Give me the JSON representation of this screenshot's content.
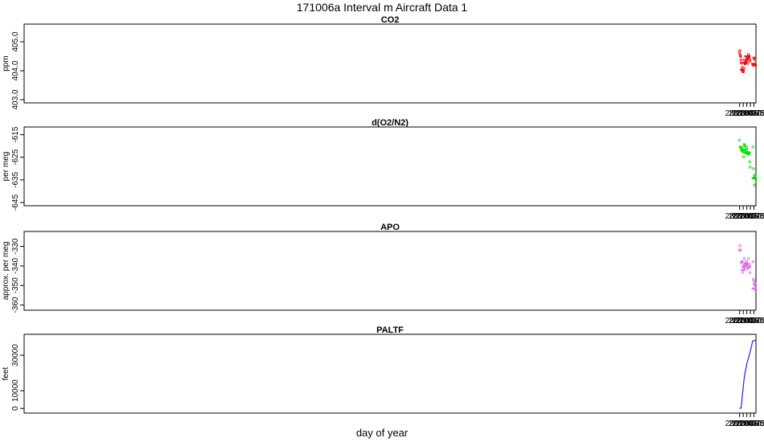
{
  "page_title": "171006a   Interval m Aircraft Data 1",
  "xlabel": "day of year",
  "x_ticks": [
    "280.060",
    "280.065",
    "280.070",
    "280.075",
    "280.080"
  ],
  "x_tick_values": [
    280.06,
    280.065,
    280.07,
    280.075,
    280.08
  ],
  "xlim": [
    279.0594,
    280.0828
  ],
  "chart_data": [
    {
      "type": "scatter",
      "title": "CO2",
      "ylabel": "ppm",
      "color": "#e8000b",
      "ylim": [
        403.0,
        405.5
      ],
      "y_ticks": [
        "403.0",
        "404.0",
        "405.0"
      ],
      "y_tick_values": [
        403.0,
        404.0,
        405.0
      ],
      "segments": [
        {
          "x": [
            280.0596,
            280.0605,
            280.0615,
            280.0625,
            280.0635,
            280.0645,
            280.0655,
            280.0665,
            280.0675,
            280.0685,
            280.0695,
            280.0705,
            280.0715,
            280.0725,
            280.0735,
            280.0746
          ],
          "y": [
            404.6,
            404.5,
            404.4,
            404.3,
            404.1,
            403.9,
            404.1,
            404.3,
            404.2,
            404.3,
            404.4,
            404.5,
            404.4,
            404.5,
            404.5,
            404.3
          ]
        },
        {
          "x": [
            280.0786,
            280.0795,
            280.0805,
            280.0815,
            280.0822
          ],
          "y": [
            404.1,
            404.3,
            404.4,
            404.3,
            404.2
          ]
        }
      ]
    },
    {
      "type": "scatter",
      "title": "d(O2/N2)",
      "ylabel": "per meg",
      "color": "#00dd00",
      "ylim": [
        -645,
        -613
      ],
      "y_ticks": [
        "-645",
        "-635",
        "-625",
        "-615"
      ],
      "y_tick_values": [
        -645,
        -635,
        -625,
        -615
      ],
      "segments": [
        {
          "x": [
            280.0596,
            280.06,
            280.0605,
            280.061,
            280.0614
          ],
          "y": [
            -620,
            -622,
            -621,
            -620,
            -619
          ]
        },
        {
          "x": [
            280.0625,
            280.0635,
            280.0645,
            280.0655,
            280.0665,
            280.0675,
            280.0685,
            280.0695,
            280.0705,
            280.0715,
            280.0725,
            280.0735,
            280.0746
          ],
          "y": [
            -623,
            -621,
            -622,
            -624,
            -620,
            -620,
            -621,
            -621,
            -622,
            -624,
            -623,
            -624,
            -628
          ]
        },
        {
          "x": [
            280.0786,
            280.0791,
            280.0797,
            280.0803,
            280.081,
            280.0816,
            280.0822
          ],
          "y": [
            -620,
            -632,
            -634,
            -636,
            -634,
            -632,
            -636
          ]
        }
      ]
    },
    {
      "type": "scatter",
      "title": "APO",
      "ylabel": "approx. per meg",
      "color": "#e066ee",
      "ylim": [
        -361,
        -324
      ],
      "y_ticks": [
        "-360",
        "-350",
        "-340",
        "-330"
      ],
      "y_tick_values": [
        -360,
        -350,
        -340,
        -330
      ],
      "segments": [
        {
          "x": [
            280.0596,
            280.06,
            280.0605,
            280.061,
            280.0614
          ],
          "y": [
            -333,
            -334,
            -331,
            -333,
            -332
          ]
        },
        {
          "x": [
            280.0625,
            280.0635,
            280.0645,
            280.0655,
            280.0665,
            280.0675,
            280.0685,
            280.0695,
            280.0705,
            280.0715,
            280.0725,
            280.0735,
            280.0746
          ],
          "y": [
            -338,
            -340,
            -341,
            -342,
            -338,
            -338,
            -339,
            -338,
            -339,
            -341,
            -339,
            -340,
            -344
          ]
        },
        {
          "x": [
            280.0786,
            280.0791,
            280.0797,
            280.0803,
            280.081,
            280.0816,
            280.0822
          ],
          "y": [
            -335,
            -349,
            -350,
            -352,
            -351,
            -349,
            -352
          ]
        }
      ]
    },
    {
      "type": "line",
      "title": "PALTF",
      "ylabel": "feet",
      "color": "#2222dd",
      "ylim": [
        -800,
        40000
      ],
      "y_ticks": [
        "0",
        "10000",
        "30000"
      ],
      "y_tick_values": [
        0,
        10000,
        30000
      ],
      "x": [
        280.0596,
        280.0616,
        280.0621,
        280.0625,
        280.063,
        280.0635,
        280.064,
        280.0648,
        280.0655,
        280.0665,
        280.0675,
        280.069,
        280.0705,
        280.072,
        280.0735,
        280.075,
        280.0765,
        280.0775,
        280.0785,
        280.079,
        280.08,
        280.0822
      ],
      "y": [
        100,
        100,
        500,
        2000,
        4000,
        6500,
        8500,
        11000,
        14000,
        17500,
        20000,
        23000,
        26000,
        28000,
        30000,
        32500,
        35000,
        37000,
        38200,
        38300,
        38300,
        38300
      ]
    }
  ]
}
